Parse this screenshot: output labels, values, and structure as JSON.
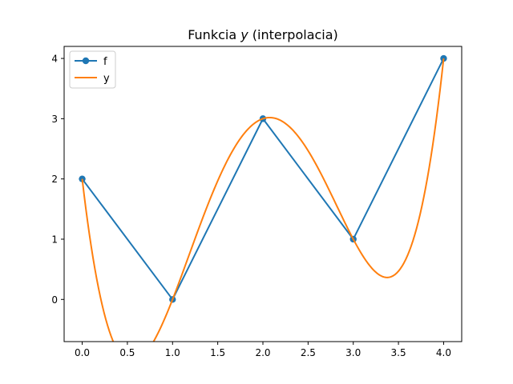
{
  "chart_data": {
    "type": "line",
    "title": "Funkcia y (interpolacia)",
    "title_parts": {
      "before": "Funkcia ",
      "var": "y",
      "after": " (interpolacia)"
    },
    "xlabel": "",
    "ylabel": "",
    "xlim": [
      -0.2,
      4.2
    ],
    "ylim": [
      -0.7,
      4.2
    ],
    "x_ticks": [
      0.0,
      0.5,
      1.0,
      1.5,
      2.0,
      2.5,
      3.0,
      3.5,
      4.0
    ],
    "x_tick_labels": [
      "0.0",
      "0.5",
      "1.0",
      "1.5",
      "2.0",
      "2.5",
      "3.0",
      "3.5",
      "4.0"
    ],
    "y_ticks": [
      0,
      1,
      2,
      3,
      4
    ],
    "y_tick_labels": [
      "0",
      "1",
      "2",
      "3",
      "4"
    ],
    "grid": false,
    "legend_position": "top-left",
    "series": [
      {
        "name": "f",
        "color": "#1f77b4",
        "marker": "circle",
        "x": [
          0,
          1,
          2,
          3,
          4
        ],
        "y": [
          2,
          0,
          3,
          1,
          4
        ]
      },
      {
        "name": "y",
        "color": "#ff7f0e",
        "marker": "none",
        "interpolation": "polynomial",
        "x": [
          0,
          1,
          2,
          3,
          4
        ],
        "y": [
          2,
          0,
          3,
          1,
          4
        ]
      }
    ]
  }
}
